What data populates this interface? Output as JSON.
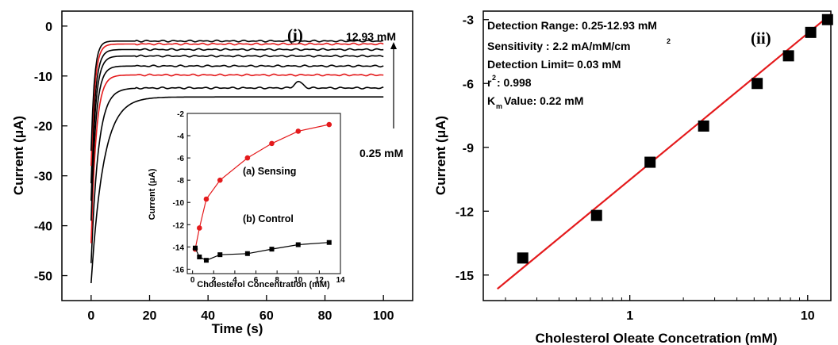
{
  "chart_data": [
    {
      "panel": "(i)",
      "type": "line",
      "xlabel": "Time (s)",
      "ylabel": "Current (μA)",
      "xlim": [
        -10,
        110
      ],
      "ylim": [
        -55,
        3
      ],
      "xticks": [
        "0",
        "20",
        "40",
        "60",
        "80",
        "100"
      ],
      "yticks": [
        "0",
        "-10",
        "-20",
        "-30",
        "-40",
        "-50"
      ],
      "annotations": {
        "top": "12.93 mM",
        "bottom": "0.25 mM"
      },
      "colors": {
        "black": "#000000",
        "red": "#e41a1c"
      },
      "series": [
        {
          "color": "#000000",
          "start": -51.5,
          "plateau": -14.2
        },
        {
          "color": "#000000",
          "start": -47.5,
          "plateau": -12.4
        },
        {
          "color": "#e41a1c",
          "start": -43.5,
          "plateau": -9.8
        },
        {
          "color": "#000000",
          "start": -39,
          "plateau": -8.0
        },
        {
          "color": "#000000",
          "start": -35,
          "plateau": -6.0
        },
        {
          "color": "#000000",
          "start": -31.5,
          "plateau": -4.7
        },
        {
          "color": "#e41a1c",
          "start": -28,
          "plateau": -3.6
        },
        {
          "color": "#000000",
          "start": -25,
          "plateau": -3.0
        }
      ]
    },
    {
      "panel": "inset",
      "type": "line",
      "xlabel": "Cholesterol Concentration (mM)",
      "ylabel": "Current (μA)",
      "xlim": [
        -0.5,
        14
      ],
      "ylim": [
        -16.4,
        -2
      ],
      "xticks": [
        "0",
        "2",
        "4",
        "6",
        "8",
        "10",
        "12",
        "14"
      ],
      "yticks": [
        "-2",
        "-4",
        "-6",
        "-8",
        "-10",
        "-12",
        "-14",
        "-16"
      ],
      "series": [
        {
          "name": "(a) Sensing",
          "color": "#e41a1c",
          "x": [
            0.25,
            0.65,
            1.3,
            2.6,
            5.2,
            7.5,
            10.0,
            12.93
          ],
          "y": [
            -14.2,
            -12.3,
            -9.7,
            -8.0,
            -6.0,
            -4.7,
            -3.6,
            -3.0
          ]
        },
        {
          "name": "(b) Control",
          "color": "#000000",
          "x": [
            0.25,
            0.65,
            1.3,
            2.6,
            5.2,
            7.5,
            10.0,
            12.93
          ],
          "y": [
            -14.1,
            -14.9,
            -15.2,
            -14.7,
            -14.6,
            -14.2,
            -13.8,
            -13.6
          ]
        }
      ]
    },
    {
      "panel": "(ii)",
      "type": "scatter",
      "xscale": "log",
      "xlabel": "Cholesterol Oleate Concetration (mM)",
      "ylabel": "Current (μA)",
      "xlim": [
        0.15,
        13.5
      ],
      "ylim": [
        -16.2,
        -2.6
      ],
      "xticks": [
        "1",
        "10"
      ],
      "yticks": [
        "-3",
        "-6",
        "-9",
        "-12",
        "-15"
      ],
      "x": [
        0.25,
        0.65,
        1.3,
        2.6,
        5.2,
        7.8,
        10.4,
        12.93
      ],
      "y": [
        -14.2,
        -12.2,
        -9.7,
        -8.0,
        -6.0,
        -4.7,
        -3.6,
        -3.0
      ],
      "fit": {
        "color": "#e41a1c",
        "from": [
          0.18,
          -15.65
        ],
        "to": [
          13.5,
          -2.75
        ]
      },
      "stats": [
        "Detection Range: 0.25-12.93 mM",
        "Sensitivity : 2.2 mA/mM/cm",
        "Detection Limit= 0.03 mM",
        "r",
        ": 0.998",
        "K",
        "m",
        " Value: 0.22 mM"
      ],
      "superscripts": [
        "2",
        "2"
      ]
    }
  ]
}
